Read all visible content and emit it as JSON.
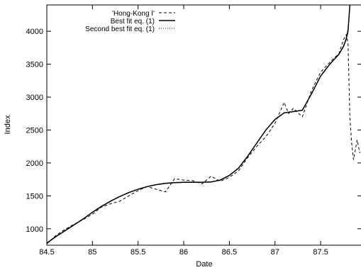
{
  "chart_data": {
    "type": "line",
    "title": "",
    "xlabel": "Date",
    "ylabel": "Index",
    "xlim": [
      84.5,
      87.95
    ],
    "ylim": [
      750,
      4400
    ],
    "grid": false,
    "legend_position": "top-left",
    "x_ticks": [
      84.5,
      85,
      85.5,
      86,
      86.5,
      87,
      87.5
    ],
    "x_tick_labels": [
      "84.5",
      "85",
      "85.5",
      "86",
      "86.5",
      "87",
      "87.5"
    ],
    "y_ticks": [
      1000,
      1500,
      2000,
      2500,
      3000,
      3500,
      4000
    ],
    "y_tick_labels": [
      "1000",
      "1500",
      "2000",
      "2500",
      "3000",
      "3500",
      "4000"
    ],
    "series": [
      {
        "name": "'Hong-Kong I'",
        "style": "dashed",
        "x": [
          84.5,
          84.6,
          84.7,
          84.8,
          84.9,
          85.0,
          85.1,
          85.2,
          85.3,
          85.4,
          85.5,
          85.6,
          85.7,
          85.8,
          85.9,
          86.0,
          86.1,
          86.2,
          86.3,
          86.4,
          86.5,
          86.6,
          86.7,
          86.8,
          86.9,
          87.0,
          87.1,
          87.15,
          87.2,
          87.3,
          87.4,
          87.5,
          87.6,
          87.7,
          87.75,
          87.78,
          87.8,
          87.82,
          87.84,
          87.86,
          87.88,
          87.9,
          87.93
        ],
        "y": [
          770,
          900,
          990,
          1070,
          1140,
          1220,
          1330,
          1380,
          1420,
          1500,
          1580,
          1640,
          1600,
          1560,
          1760,
          1740,
          1730,
          1680,
          1800,
          1720,
          1780,
          1880,
          2080,
          2250,
          2400,
          2600,
          2920,
          2750,
          2830,
          2700,
          3100,
          3380,
          3530,
          3660,
          3870,
          3950,
          3820,
          2700,
          2300,
          2050,
          2200,
          2350,
          2150
        ]
      },
      {
        "name": "Best fit eq. (1)",
        "style": "solid",
        "x": [
          84.5,
          84.6,
          84.7,
          84.8,
          84.9,
          85.0,
          85.1,
          85.2,
          85.3,
          85.4,
          85.5,
          85.6,
          85.7,
          85.8,
          85.9,
          86.0,
          86.1,
          86.2,
          86.3,
          86.4,
          86.5,
          86.6,
          86.7,
          86.8,
          86.9,
          87.0,
          87.1,
          87.2,
          87.3,
          87.4,
          87.5,
          87.6,
          87.7,
          87.75,
          87.78,
          87.8,
          87.82
        ],
        "y": [
          780,
          880,
          970,
          1060,
          1150,
          1250,
          1340,
          1420,
          1490,
          1550,
          1600,
          1640,
          1670,
          1690,
          1700,
          1705,
          1705,
          1705,
          1710,
          1740,
          1810,
          1920,
          2100,
          2300,
          2500,
          2660,
          2760,
          2780,
          2800,
          3050,
          3320,
          3500,
          3650,
          3770,
          3880,
          4000,
          4400
        ]
      },
      {
        "name": "Second best fit eq. (1)",
        "style": "dotted",
        "x": [
          84.5,
          84.6,
          84.7,
          84.8,
          84.9,
          85.0,
          85.1,
          85.2,
          85.3,
          85.4,
          85.5,
          85.6,
          85.7,
          85.8,
          85.9,
          86.0,
          86.1,
          86.2,
          86.3,
          86.4,
          86.5,
          86.6,
          86.7,
          86.8,
          86.9,
          87.0,
          87.1,
          87.2,
          87.3,
          87.4,
          87.5,
          87.6,
          87.7,
          87.75,
          87.78,
          87.8,
          87.82
        ],
        "y": [
          790,
          885,
          975,
          1065,
          1155,
          1255,
          1345,
          1425,
          1495,
          1555,
          1605,
          1645,
          1675,
          1695,
          1705,
          1710,
          1710,
          1710,
          1715,
          1745,
          1815,
          1925,
          2105,
          2305,
          2505,
          2665,
          2765,
          2785,
          2805,
          3055,
          3325,
          3505,
          3655,
          3780,
          3900,
          4050,
          4400
        ]
      }
    ]
  }
}
